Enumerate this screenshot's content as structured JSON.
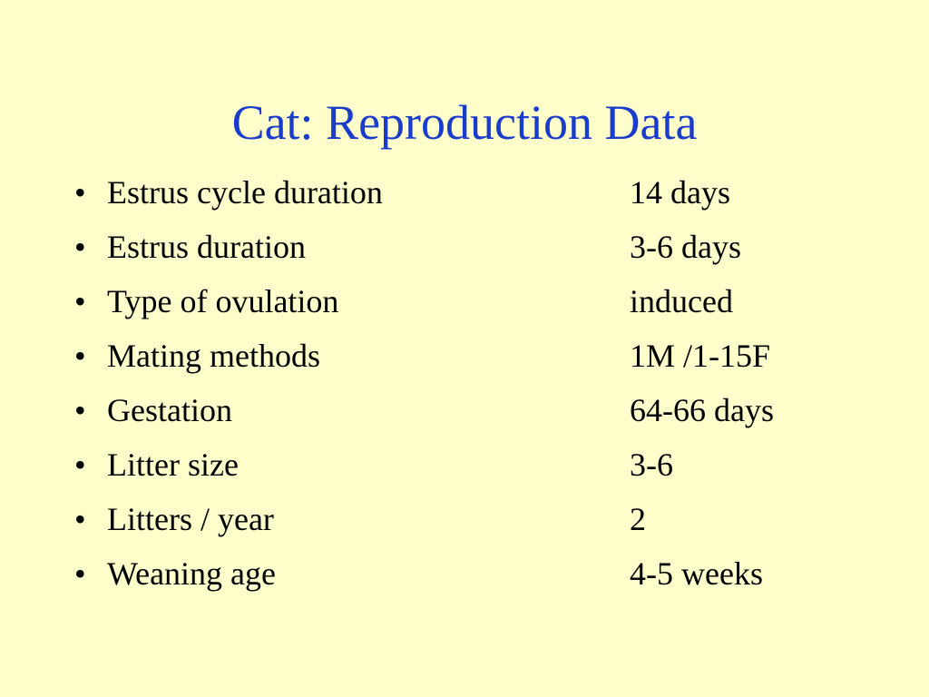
{
  "title": "Cat: Reproduction Data",
  "items": [
    {
      "label": "Estrus cycle duration",
      "value": "14 days"
    },
    {
      "label": "Estrus duration",
      "value": "3-6 days"
    },
    {
      "label": "Type of ovulation",
      "value": "induced"
    },
    {
      "label": "Mating methods",
      "value": "1M /1-15F"
    },
    {
      "label": "Gestation",
      "value": "64-66 days"
    },
    {
      "label": "Litter size",
      "value": "3-6"
    },
    {
      "label": "Litters / year",
      "value": "2"
    },
    {
      "label": "Weaning age",
      "value": "4-5 weeks"
    }
  ]
}
